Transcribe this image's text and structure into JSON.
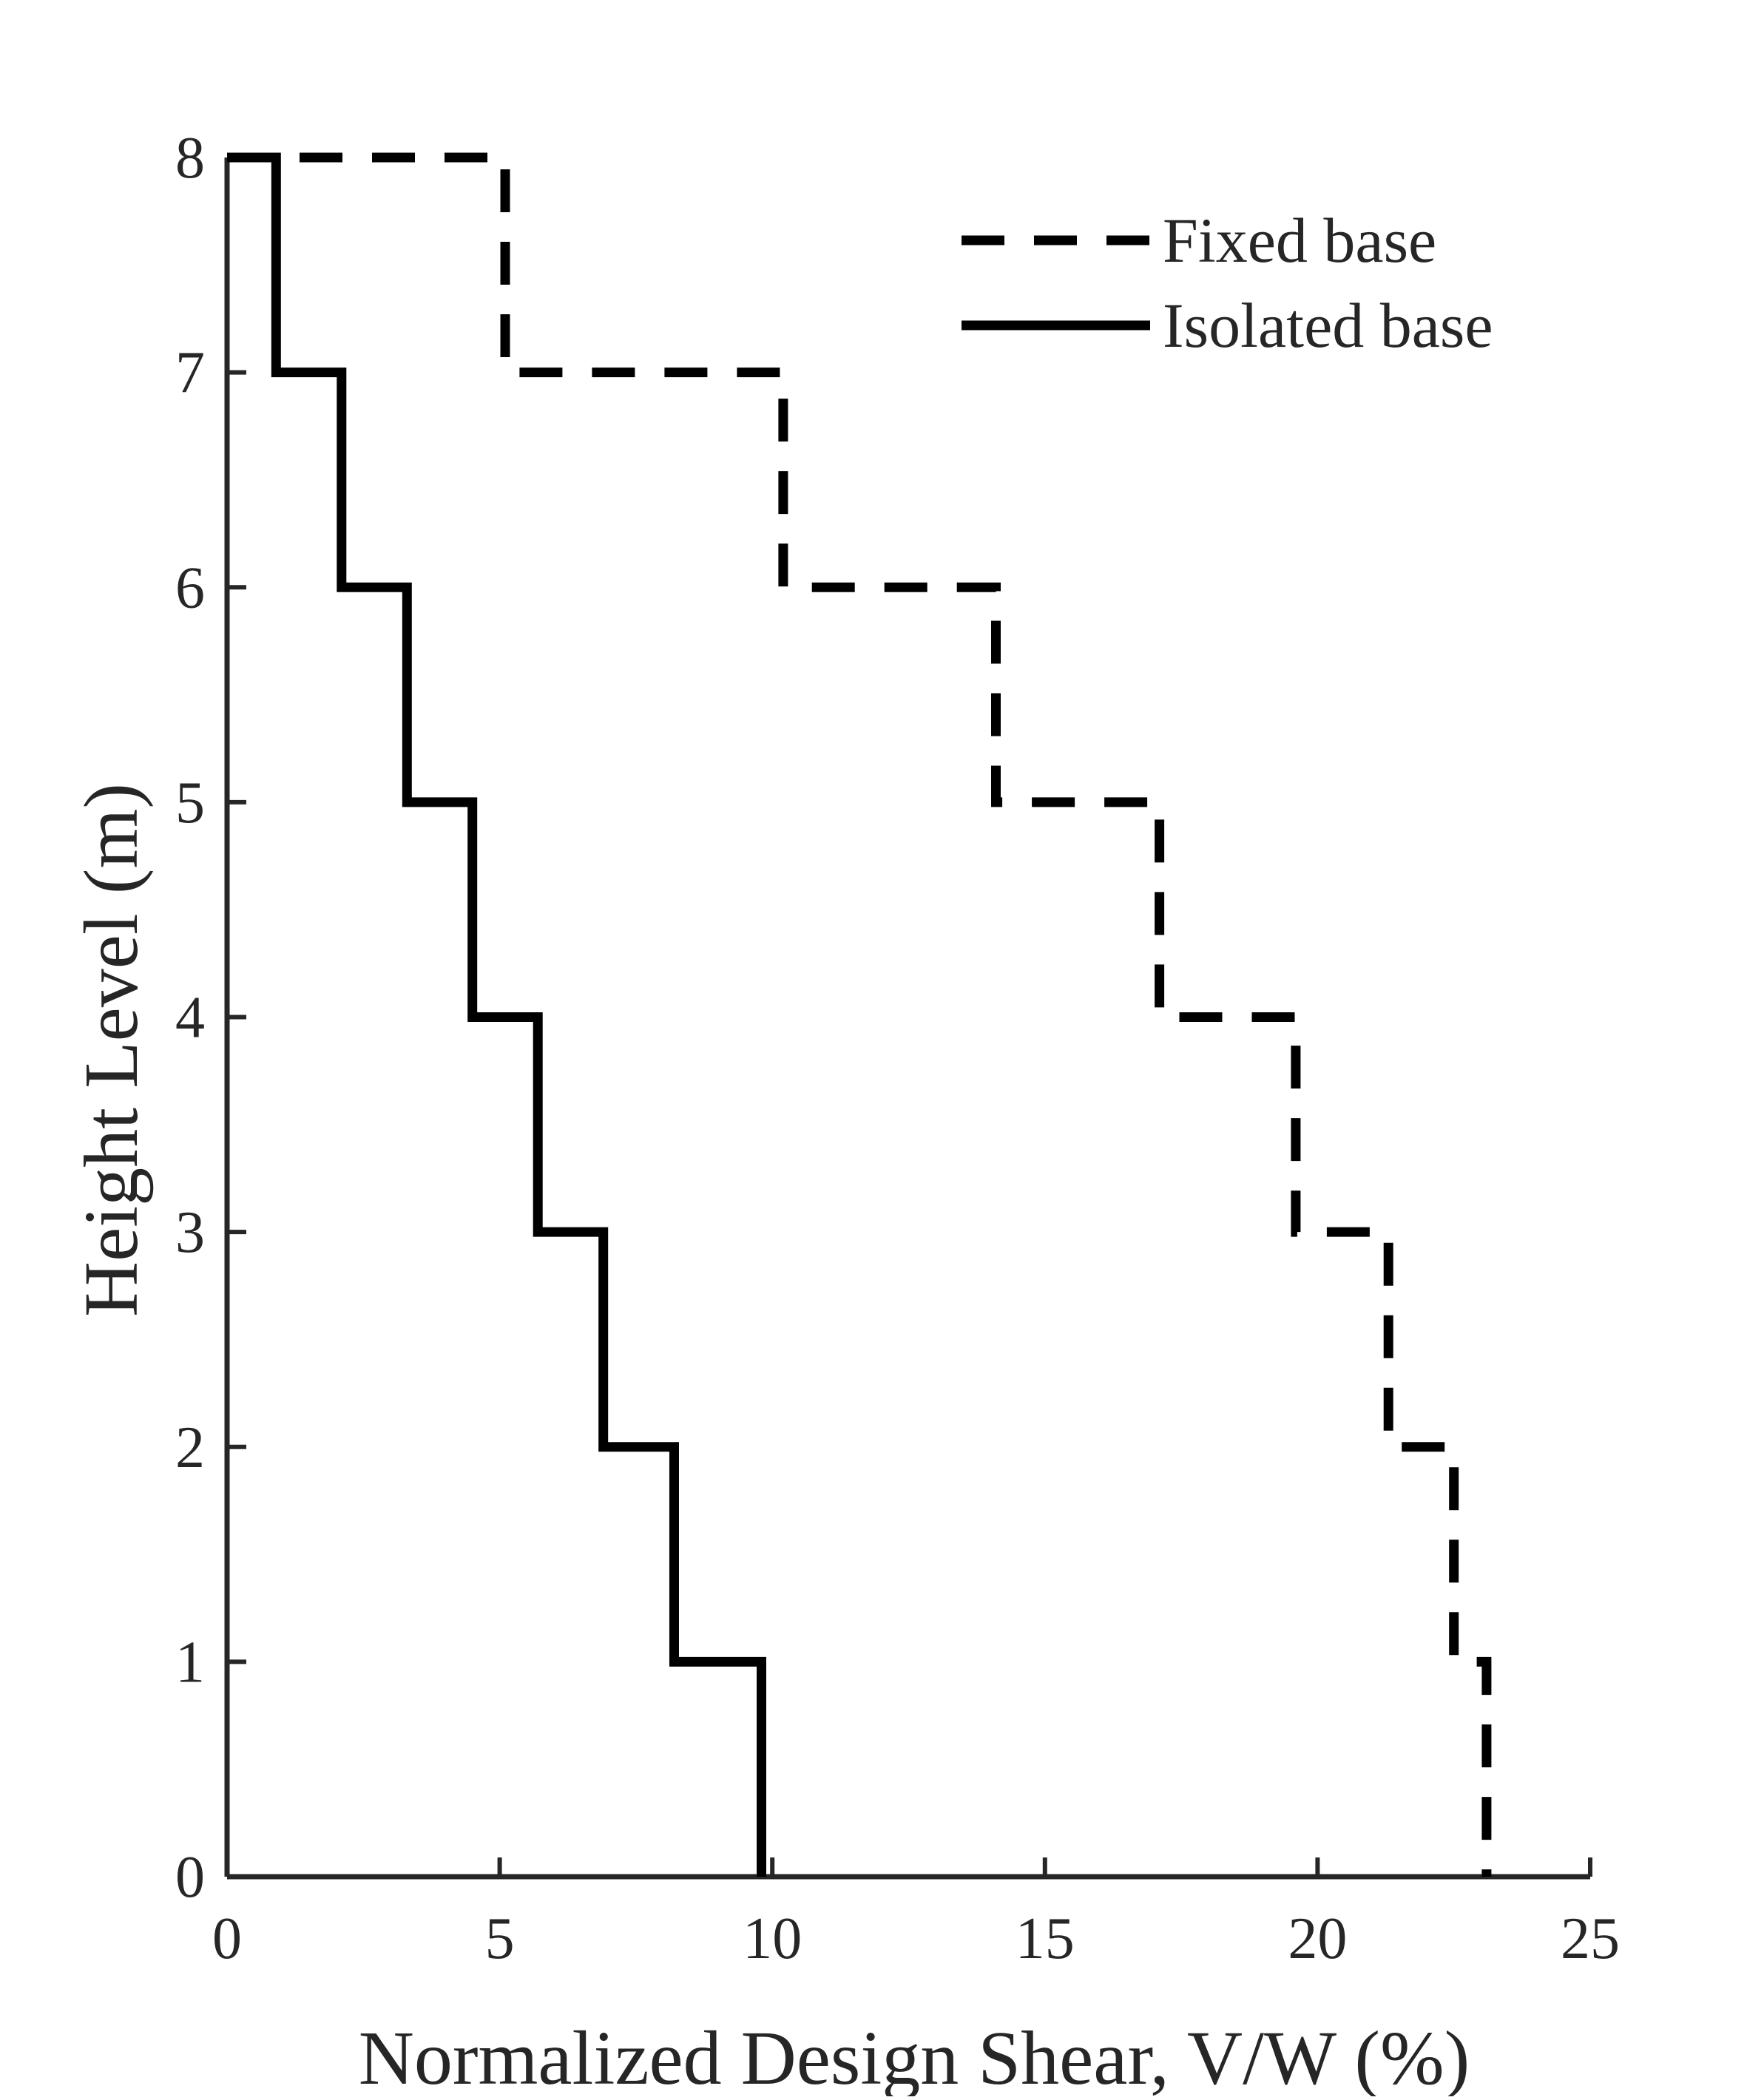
{
  "chart_data": {
    "type": "line",
    "title": "",
    "xlabel": "Normalized Design Shear, V/W (%)",
    "ylabel": "Height Level (m)",
    "xlim": [
      0,
      25
    ],
    "ylim": [
      0,
      8
    ],
    "xticks": [
      0,
      5,
      10,
      15,
      20,
      25
    ],
    "yticks": [
      0,
      1,
      2,
      3,
      4,
      5,
      6,
      7,
      8
    ],
    "xtick_labels": [
      "0",
      "5",
      "10",
      "15",
      "20",
      "25"
    ],
    "ytick_labels": [
      "0",
      "1",
      "2",
      "3",
      "4",
      "5",
      "6",
      "7",
      "8"
    ],
    "grid": false,
    "legend_position": "top-right",
    "series": [
      {
        "name": "Fixed base",
        "style": "dashed",
        "color": "#000000",
        "points": [
          [
            0,
            8
          ],
          [
            5.1,
            8
          ],
          [
            5.1,
            7
          ],
          [
            10.2,
            7
          ],
          [
            10.2,
            6
          ],
          [
            14.1,
            6
          ],
          [
            14.1,
            5
          ],
          [
            17.1,
            5
          ],
          [
            17.1,
            4
          ],
          [
            19.6,
            4
          ],
          [
            19.6,
            3
          ],
          [
            21.3,
            3
          ],
          [
            21.3,
            2
          ],
          [
            22.5,
            2
          ],
          [
            22.5,
            1
          ],
          [
            23.1,
            1
          ],
          [
            23.1,
            0
          ]
        ]
      },
      {
        "name": "Isolated base",
        "style": "solid",
        "color": "#000000",
        "points": [
          [
            0,
            8
          ],
          [
            0.9,
            8
          ],
          [
            0.9,
            7
          ],
          [
            2.1,
            7
          ],
          [
            2.1,
            6
          ],
          [
            3.3,
            6
          ],
          [
            3.3,
            5
          ],
          [
            4.5,
            5
          ],
          [
            4.5,
            4
          ],
          [
            5.7,
            4
          ],
          [
            5.7,
            3
          ],
          [
            6.9,
            3
          ],
          [
            6.9,
            2
          ],
          [
            8.2,
            2
          ],
          [
            8.2,
            1
          ],
          [
            9.8,
            1
          ],
          [
            9.8,
            0
          ]
        ]
      }
    ]
  }
}
